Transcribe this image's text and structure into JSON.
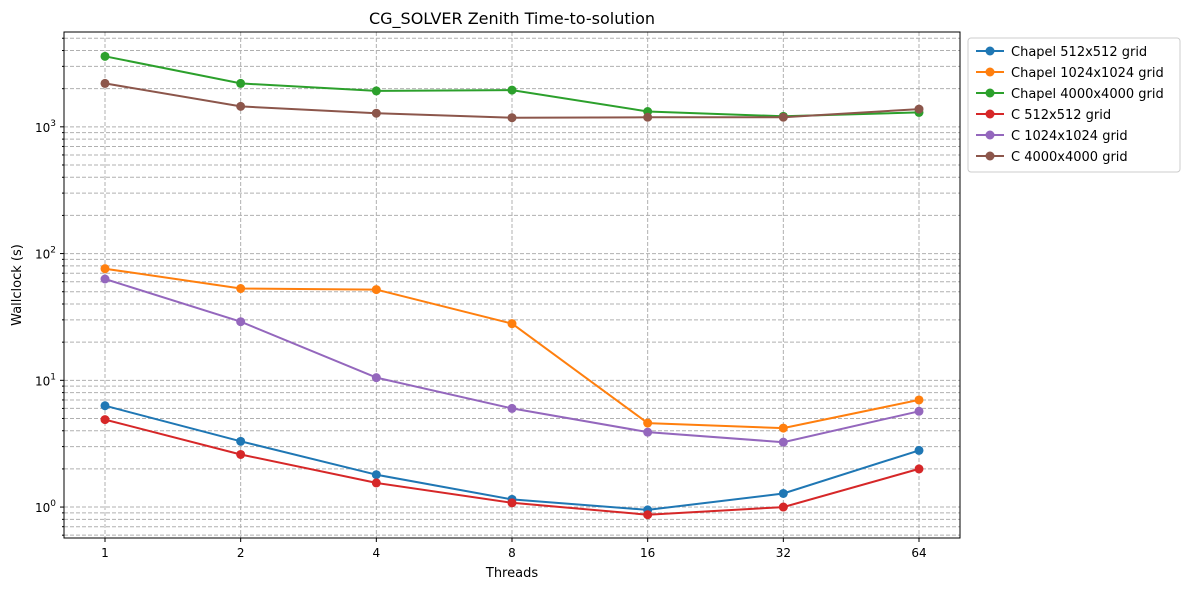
{
  "chart_data": {
    "type": "line",
    "title": "CG_SOLVER Zenith Time-to-solution",
    "xlabel": "Threads",
    "ylabel": "Wallclock (s)",
    "x_scale": "log2",
    "y_scale": "log",
    "x": [
      1,
      2,
      4,
      8,
      16,
      32,
      64
    ],
    "x_tick_labels": [
      "1",
      "2",
      "4",
      "8",
      "16",
      "32",
      "64"
    ],
    "y_tick_major": [
      {
        "value": 1,
        "base": "10",
        "exp": "0"
      },
      {
        "value": 10,
        "base": "10",
        "exp": "1"
      },
      {
        "value": 100,
        "base": "10",
        "exp": "2"
      },
      {
        "value": 1000,
        "base": "10",
        "exp": "3"
      }
    ],
    "ylim": [
      0.57,
      5600
    ],
    "grid": true,
    "legend_position": "outside-top-right",
    "series": [
      {
        "name": "Chapel 512x512 grid",
        "color": "#1f77b4",
        "values": [
          6.3,
          3.3,
          1.8,
          1.15,
          0.95,
          1.28,
          2.8
        ]
      },
      {
        "name": "Chapel 1024x1024 grid",
        "color": "#ff7f0e",
        "values": [
          76,
          53,
          52,
          28,
          4.6,
          4.2,
          7.0
        ]
      },
      {
        "name": "Chapel 4000x4000 grid",
        "color": "#2ca02c",
        "values": [
          3600,
          2200,
          1920,
          1950,
          1320,
          1210,
          1300
        ]
      },
      {
        "name": "C 512x512 grid",
        "color": "#d62728",
        "values": [
          4.9,
          2.6,
          1.55,
          1.08,
          0.87,
          1.0,
          2.0
        ]
      },
      {
        "name": "C 1024x1024 grid",
        "color": "#9467bd",
        "values": [
          63,
          29,
          10.5,
          6.0,
          3.9,
          3.25,
          5.7
        ]
      },
      {
        "name": "C 4000x4000 grid",
        "color": "#8c564b",
        "values": [
          2200,
          1450,
          1280,
          1180,
          1190,
          1190,
          1380
        ]
      }
    ]
  }
}
